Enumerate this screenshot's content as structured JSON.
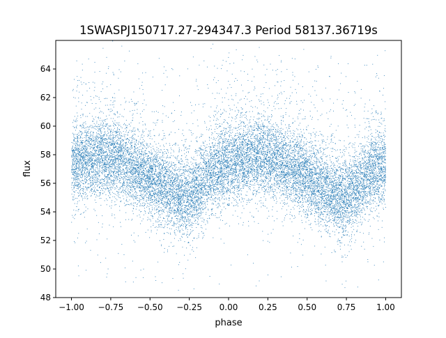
{
  "chart_data": {
    "type": "scatter",
    "title": "1SWASPJ150717.27-294347.3 Period 58137.36719s",
    "xlabel": "phase",
    "ylabel": "flux",
    "xlim": [
      -1.1,
      1.1
    ],
    "ylim": [
      48,
      66
    ],
    "xticks": [
      -1.0,
      -0.75,
      -0.5,
      -0.25,
      0.0,
      0.25,
      0.5,
      0.75,
      1.0
    ],
    "xtick_labels": [
      "−1.00",
      "−0.75",
      "−0.50",
      "−0.25",
      "0.00",
      "0.25",
      "0.50",
      "0.75",
      "1.00"
    ],
    "yticks": [
      48,
      50,
      52,
      54,
      56,
      58,
      60,
      62,
      64
    ],
    "ytick_labels": [
      "48",
      "50",
      "52",
      "54",
      "56",
      "58",
      "60",
      "62",
      "64"
    ],
    "grid": false,
    "legend": "none",
    "point_color": "#1f77b4",
    "series": [
      {
        "phase_range": [
          -1.0,
          1.0
        ],
        "point_count": 16000,
        "trend": {
          "x": [
            -1.0,
            -0.9,
            -0.8,
            -0.7,
            -0.6,
            -0.5,
            -0.4,
            -0.3,
            -0.25,
            -0.2,
            -0.1,
            0.0,
            0.1,
            0.2,
            0.3,
            0.4,
            0.5,
            0.6,
            0.7,
            0.75,
            0.8,
            0.9,
            1.0
          ],
          "y": [
            57.2,
            57.6,
            57.9,
            57.6,
            57.0,
            56.3,
            55.6,
            55.0,
            54.9,
            55.6,
            56.8,
            57.3,
            57.6,
            57.9,
            57.6,
            57.0,
            56.3,
            55.6,
            55.0,
            54.9,
            55.6,
            56.8,
            57.2
          ]
        },
        "core_spread": 1.3,
        "outlier_range": [
          48.8,
          65
        ]
      }
    ]
  }
}
